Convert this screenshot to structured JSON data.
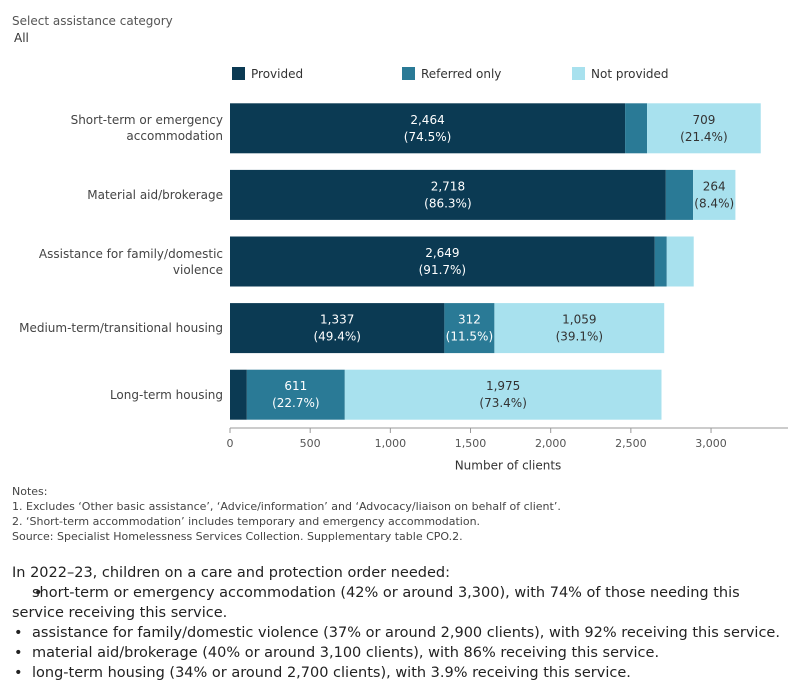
{
  "filter": {
    "label": "Select assistance category",
    "value": "All"
  },
  "chart_data": {
    "type": "stacked-bar-horizontal",
    "x_label": "Number of clients",
    "categories": [
      "Short-term or emergency accommodation",
      "Material aid/brokerage",
      "Assistance for family/domestic violence",
      "Medium-term/transitional housing",
      "Long-term housing"
    ],
    "series": [
      {
        "name": "Provided",
        "color": "#0b3a53",
        "text_color": "#ffffff",
        "values": [
          2464,
          2718,
          2649,
          1337,
          105
        ],
        "value_labels": [
          "2,464",
          "2,718",
          "2,649",
          "1,337",
          null
        ],
        "share_labels": [
          "(74.5%)",
          "(86.3%)",
          "(91.7%)",
          "(49.4%)",
          null
        ]
      },
      {
        "name": "Referred only",
        "color": "#2a7a96",
        "text_color": "#ffffff",
        "values": [
          137,
          170,
          75,
          312,
          611
        ],
        "value_labels": [
          null,
          null,
          null,
          "312",
          "611"
        ],
        "share_labels": [
          null,
          null,
          null,
          "(11.5%)",
          "(22.7%)"
        ]
      },
      {
        "name": "Not provided",
        "color": "#a8e1ee",
        "text_color": "#333333",
        "values": [
          709,
          264,
          168,
          1059,
          1975
        ],
        "value_labels": [
          "709",
          "264",
          null,
          "1,059",
          "1,975"
        ],
        "share_labels": [
          "(21.4%)",
          "(8.4%)",
          null,
          "(39.1%)",
          "(73.4%)"
        ]
      }
    ],
    "xlim": [
      0,
      3480
    ],
    "xticks": [
      0,
      500,
      {
        "value": 1000,
        "label": "1,000"
      },
      {
        "value": 1500,
        "label": "1,500"
      },
      {
        "value": 2000,
        "label": "2,000"
      },
      {
        "value": 2500,
        "label": "2,500"
      },
      {
        "value": 3000,
        "label": "3,000"
      }
    ],
    "grid": false,
    "legend_position": "top"
  },
  "notes": {
    "heading": "Notes:",
    "items": [
      "1. Excludes ‘Other basic assistance’, ‘Advice/information’ and ‘Advocacy/liaison on behalf of client’.",
      "2. ‘Short-term accommodation’ includes temporary and emergency accommodation."
    ],
    "source": "Source: Specialist Homelessness Services Collection. Supplementary table CPO.2."
  },
  "summary": {
    "intro": "In 2022–23, children on a care and protection order needed:",
    "bullets": [
      "short-term or emergency accommodation (42% or around 3,300), with 74% of those needing this service receiving this service.",
      "assistance for family/domestic violence (37% or around  2,900 clients), with 92% receiving this service.",
      "material aid/brokerage (40% or around 3,100 clients), with 86% receiving this service.",
      "long-term housing (34% or around  2,700 clients), with 3.9% receiving this service."
    ]
  }
}
